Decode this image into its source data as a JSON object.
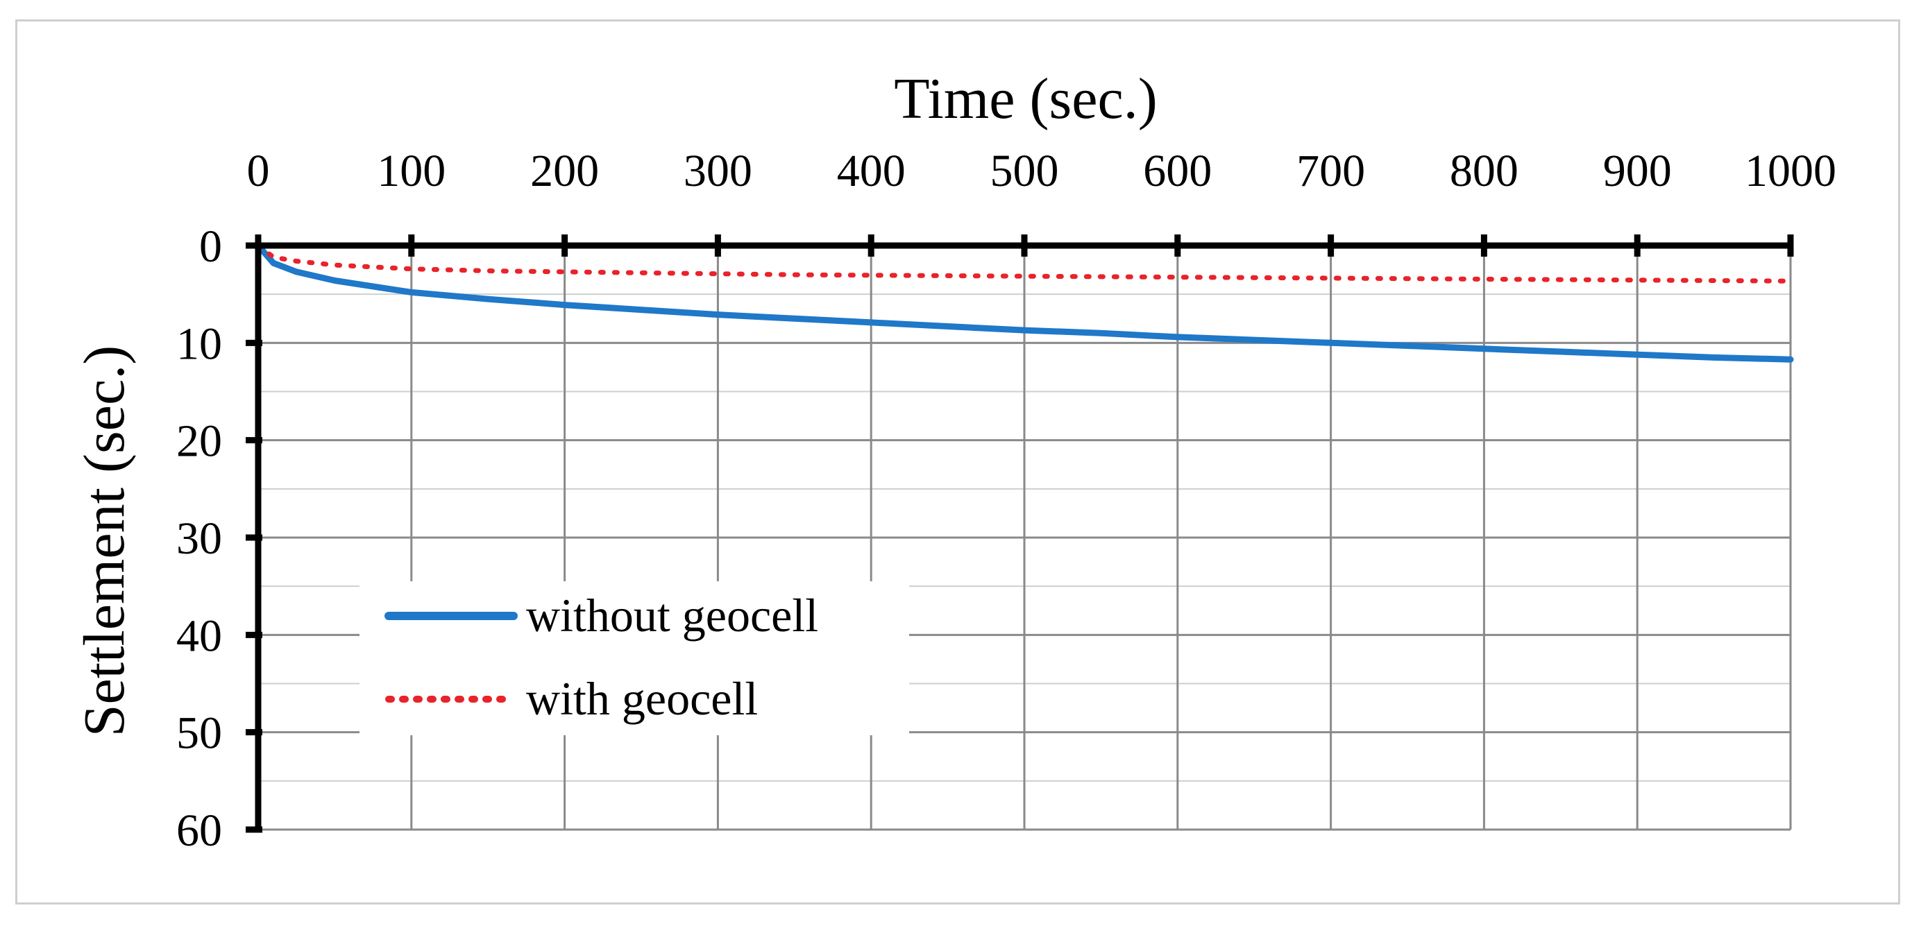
{
  "chart_data": {
    "type": "line",
    "title": "",
    "xlabel": "Time (sec.)",
    "ylabel": "Settlement (sec.)",
    "x_axis_position": "top",
    "y_axis_inverted": true,
    "xlim": [
      0,
      1000
    ],
    "ylim": [
      0,
      60
    ],
    "x_ticks": [
      0,
      100,
      200,
      300,
      400,
      500,
      600,
      700,
      800,
      900,
      1000
    ],
    "y_ticks": [
      0,
      10,
      20,
      30,
      40,
      50,
      60
    ],
    "grid": true,
    "legend_position": "lower-left",
    "x": [
      0,
      10,
      25,
      50,
      100,
      150,
      200,
      250,
      300,
      350,
      400,
      450,
      500,
      550,
      600,
      650,
      700,
      750,
      800,
      850,
      900,
      950,
      1000
    ],
    "series": [
      {
        "name": "without geocell",
        "color": "#1f78c8",
        "style": "solid",
        "values": [
          0,
          1.8,
          2.7,
          3.6,
          4.8,
          5.5,
          6.1,
          6.6,
          7.1,
          7.5,
          7.9,
          8.3,
          8.7,
          9.0,
          9.4,
          9.7,
          10.0,
          10.3,
          10.6,
          10.9,
          11.2,
          11.5,
          11.7
        ]
      },
      {
        "name": "with geocell",
        "color": "#e8232a",
        "style": "dotted",
        "values": [
          0,
          1.2,
          1.6,
          2.0,
          2.4,
          2.6,
          2.7,
          2.8,
          2.9,
          3.0,
          3.05,
          3.1,
          3.15,
          3.2,
          3.25,
          3.3,
          3.35,
          3.4,
          3.45,
          3.5,
          3.55,
          3.6,
          3.65
        ]
      }
    ]
  }
}
